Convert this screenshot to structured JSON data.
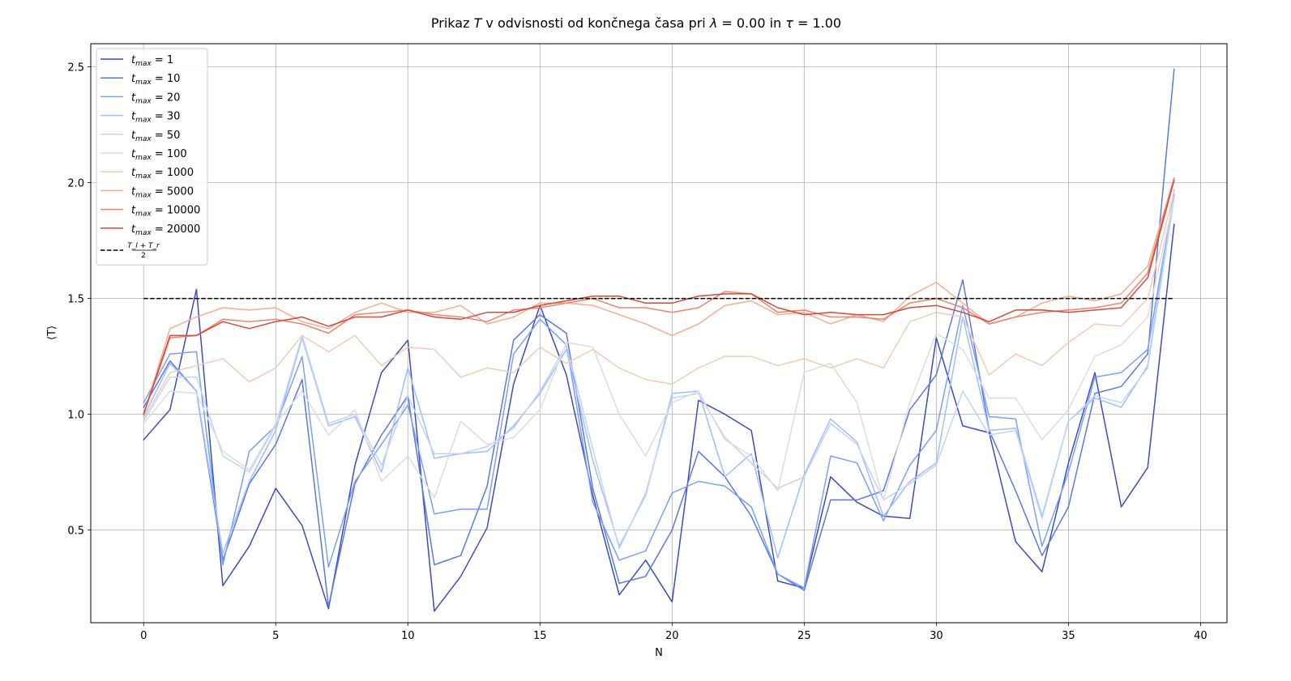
{
  "chart_data": {
    "type": "line",
    "title": "Prikaz T v odvisnosti od končnega časa pri λ = 0.00 in τ = 1.00",
    "title_parts": {
      "pre": "Prikaz ",
      "T": "T",
      "mid": " v odvisnosti od končnega časa pri ",
      "lambda_sym": "λ",
      "lambda_eq": " = 0.00 in ",
      "tau_sym": "τ",
      "tau_eq": " = 1.00"
    },
    "xlabel": "N",
    "ylabel": "⟨T⟩",
    "xlim": [
      -2,
      41
    ],
    "ylim": [
      0.1,
      2.6
    ],
    "xticks": [
      0,
      5,
      10,
      15,
      20,
      25,
      30,
      35,
      40
    ],
    "yticks": [
      0.5,
      1.0,
      1.5,
      2.0,
      2.5
    ],
    "xtick_labels": [
      "0",
      "5",
      "10",
      "15",
      "20",
      "25",
      "30",
      "35",
      "40"
    ],
    "ytick_labels": [
      "0.5",
      "1.0",
      "1.5",
      "2.0",
      "2.5"
    ],
    "grid": true,
    "legend_position": "top-left",
    "series": [
      {
        "name": "t_max = 1",
        "label_base": "t",
        "label_sub": "max",
        "label_val": " = 1",
        "color": "#3b4cc0",
        "values": [
          0.89,
          1.02,
          1.54,
          0.26,
          0.43,
          0.68,
          0.52,
          0.16,
          0.78,
          1.18,
          1.32,
          0.15,
          0.3,
          0.51,
          1.13,
          1.47,
          1.17,
          0.65,
          0.22,
          0.37,
          0.19,
          1.06,
          1.0,
          0.93,
          0.28,
          0.25,
          0.73,
          0.62,
          0.56,
          0.55,
          1.33,
          0.95,
          0.92,
          0.45,
          0.32,
          0.79,
          1.18,
          0.6,
          0.77,
          1.82
        ]
      },
      {
        "name": "t_max = 10",
        "label_base": "t",
        "label_sub": "max",
        "label_val": " = 10",
        "color": "#5a78e4",
        "values": [
          1.03,
          1.23,
          1.1,
          0.37,
          0.7,
          0.87,
          1.15,
          0.17,
          0.7,
          0.91,
          1.08,
          0.35,
          0.39,
          0.69,
          1.32,
          1.43,
          1.35,
          0.68,
          0.27,
          0.3,
          0.5,
          0.84,
          0.73,
          0.56,
          0.31,
          0.24,
          0.63,
          0.63,
          0.67,
          1.02,
          1.17,
          1.58,
          0.93,
          0.67,
          0.39,
          0.6,
          1.09,
          1.12,
          1.26,
          2.49
        ]
      },
      {
        "name": "t_max = 20",
        "label_base": "t",
        "label_sub": "max",
        "label_val": " = 20",
        "color": "#7b9ff9",
        "values": [
          1.05,
          1.26,
          1.27,
          0.35,
          0.84,
          0.95,
          1.25,
          0.34,
          0.71,
          0.87,
          1.04,
          0.57,
          0.59,
          0.59,
          1.26,
          1.41,
          1.3,
          0.62,
          0.37,
          0.41,
          0.66,
          0.71,
          0.69,
          0.6,
          0.31,
          0.25,
          0.82,
          0.79,
          0.54,
          0.78,
          0.93,
          1.47,
          0.99,
          0.98,
          0.43,
          0.75,
          1.16,
          1.18,
          1.28,
          1.95
        ]
      },
      {
        "name": "t_max = 30",
        "label_base": "t",
        "label_sub": "max",
        "label_val": " = 30",
        "color": "#9ebeff",
        "values": [
          0.99,
          1.22,
          1.1,
          0.4,
          0.71,
          0.93,
          1.33,
          0.95,
          0.99,
          0.75,
          1.2,
          0.81,
          0.83,
          0.84,
          0.95,
          1.09,
          1.28,
          0.8,
          0.43,
          0.65,
          1.09,
          1.1,
          0.73,
          0.83,
          0.38,
          0.74,
          0.98,
          0.88,
          0.56,
          0.71,
          0.79,
          1.42,
          0.93,
          0.94,
          0.56,
          0.97,
          1.07,
          1.03,
          1.21,
          1.97
        ]
      },
      {
        "name": "t_max = 50",
        "label_base": "t",
        "label_sub": "max",
        "label_val": " = 50",
        "color": "#c0d4f5",
        "values": [
          0.97,
          1.16,
          1.16,
          0.82,
          0.75,
          0.95,
          1.34,
          0.96,
          1.0,
          0.78,
          1.08,
          0.83,
          0.83,
          0.86,
          0.94,
          1.1,
          1.3,
          0.85,
          0.42,
          0.66,
          1.07,
          1.09,
          0.9,
          0.79,
          0.68,
          0.73,
          0.96,
          0.87,
          0.63,
          0.7,
          0.78,
          1.1,
          0.91,
          0.93,
          0.55,
          0.97,
          1.08,
          1.05,
          1.2,
          1.93
        ]
      },
      {
        "name": "t_max = 100",
        "label_base": "t",
        "label_sub": "max",
        "label_val": " = 100",
        "color": "#dddcdc",
        "values": [
          0.96,
          1.1,
          1.09,
          0.84,
          0.76,
          0.96,
          1.1,
          0.91,
          1.02,
          0.71,
          0.82,
          0.64,
          0.97,
          0.87,
          0.9,
          1.02,
          1.31,
          1.29,
          1.0,
          0.82,
          1.05,
          1.1,
          0.89,
          0.82,
          0.67,
          1.18,
          1.22,
          1.05,
          0.63,
          1.05,
          1.35,
          1.28,
          1.07,
          1.07,
          0.89,
          1.02,
          1.25,
          1.3,
          1.42,
          1.93
        ]
      },
      {
        "name": "t_max = 1000",
        "label_base": "t",
        "label_sub": "max",
        "label_val": " = 1000",
        "color": "#f2cbb7",
        "values": [
          0.98,
          1.18,
          1.21,
          1.24,
          1.14,
          1.2,
          1.34,
          1.27,
          1.34,
          1.21,
          1.29,
          1.28,
          1.16,
          1.2,
          1.18,
          1.29,
          1.22,
          1.28,
          1.2,
          1.15,
          1.13,
          1.2,
          1.25,
          1.25,
          1.21,
          1.24,
          1.2,
          1.24,
          1.2,
          1.4,
          1.44,
          1.42,
          1.17,
          1.26,
          1.21,
          1.31,
          1.39,
          1.38,
          1.5,
          1.96
        ]
      },
      {
        "name": "t_max = 5000",
        "label_base": "t",
        "label_sub": "max",
        "label_val": " = 5000",
        "color": "#f7ac8e",
        "values": [
          1.0,
          1.37,
          1.42,
          1.46,
          1.45,
          1.46,
          1.4,
          1.37,
          1.44,
          1.48,
          1.44,
          1.44,
          1.47,
          1.39,
          1.42,
          1.48,
          1.48,
          1.47,
          1.43,
          1.39,
          1.34,
          1.39,
          1.47,
          1.49,
          1.43,
          1.44,
          1.39,
          1.43,
          1.4,
          1.51,
          1.57,
          1.48,
          1.39,
          1.42,
          1.48,
          1.51,
          1.49,
          1.52,
          1.64,
          2.02
        ]
      },
      {
        "name": "t_max = 10000",
        "label_base": "t",
        "label_sub": "max",
        "label_val": " = 10000",
        "color": "#ee8468",
        "values": [
          1.0,
          1.33,
          1.34,
          1.41,
          1.4,
          1.41,
          1.39,
          1.35,
          1.43,
          1.44,
          1.45,
          1.43,
          1.42,
          1.4,
          1.45,
          1.46,
          1.48,
          1.5,
          1.46,
          1.46,
          1.44,
          1.46,
          1.53,
          1.52,
          1.44,
          1.45,
          1.42,
          1.42,
          1.41,
          1.48,
          1.5,
          1.46,
          1.39,
          1.42,
          1.44,
          1.45,
          1.46,
          1.48,
          1.61,
          2.02
        ]
      },
      {
        "name": "t_max = 20000",
        "label_base": "t",
        "label_sub": "max",
        "label_val": " = 20000",
        "color": "#d6483d",
        "values": [
          1.0,
          1.34,
          1.34,
          1.4,
          1.37,
          1.4,
          1.42,
          1.38,
          1.42,
          1.42,
          1.45,
          1.42,
          1.41,
          1.44,
          1.44,
          1.47,
          1.49,
          1.51,
          1.51,
          1.48,
          1.48,
          1.51,
          1.52,
          1.52,
          1.46,
          1.43,
          1.44,
          1.43,
          1.43,
          1.46,
          1.47,
          1.44,
          1.4,
          1.45,
          1.45,
          1.44,
          1.45,
          1.46,
          1.59,
          2.01
        ]
      }
    ],
    "reference_line": {
      "label_num": "T_l + T_r",
      "label_den": "2",
      "color": "#000000",
      "style": "dashed",
      "value": 1.5,
      "x_range": [
        0,
        39
      ]
    }
  }
}
